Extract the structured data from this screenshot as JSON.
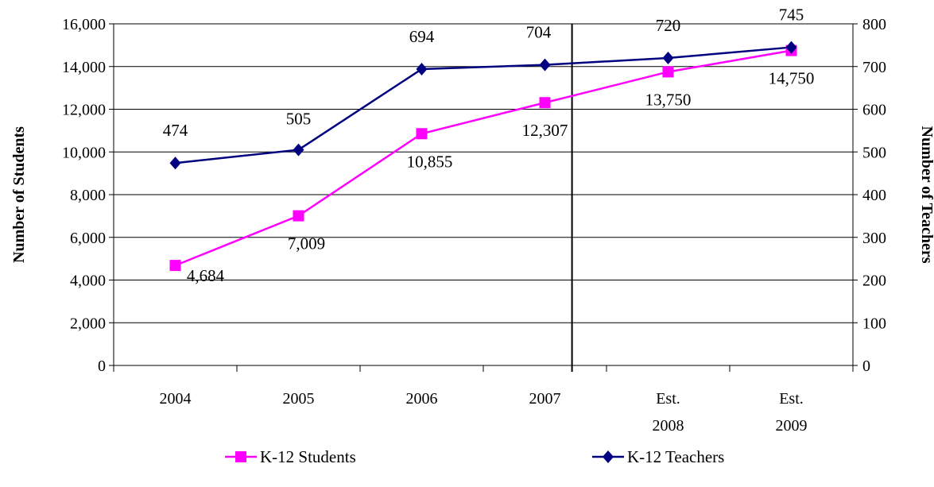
{
  "chart_data": {
    "type": "line",
    "categories": [
      [
        "2004"
      ],
      [
        "2005"
      ],
      [
        "2006"
      ],
      [
        "2007"
      ],
      [
        "Est.",
        "2008"
      ],
      [
        "Est.",
        "2009"
      ]
    ],
    "ylabel_left": "Number of Students",
    "ylabel_right": "Number of Teachers",
    "y_left_range": [
      0,
      16000
    ],
    "y_left_ticks": [
      "0",
      "2,000",
      "4,000",
      "6,000",
      "8,000",
      "10,000",
      "12,000",
      "14,000",
      "16,000"
    ],
    "y_right_range": [
      0,
      800
    ],
    "y_right_ticks": [
      "0",
      "100",
      "200",
      "300",
      "400",
      "500",
      "600",
      "700",
      "800"
    ],
    "grid": true,
    "legend_position": "bottom",
    "series": [
      {
        "name": "K-12 Students",
        "axis": "left",
        "color": "#ff00ff",
        "marker": "square",
        "values": [
          4684,
          7009,
          10855,
          12307,
          13750,
          14750
        ],
        "labels": [
          "4,684",
          "7,009",
          "10,855",
          "12,307",
          "13,750",
          "14,750"
        ]
      },
      {
        "name": "K-12 Teachers",
        "axis": "right",
        "color": "#000080",
        "marker": "diamond",
        "values": [
          474,
          505,
          694,
          704,
          720,
          745
        ],
        "labels": [
          "474",
          "505",
          "694",
          "704",
          "720",
          "745"
        ]
      }
    ]
  }
}
